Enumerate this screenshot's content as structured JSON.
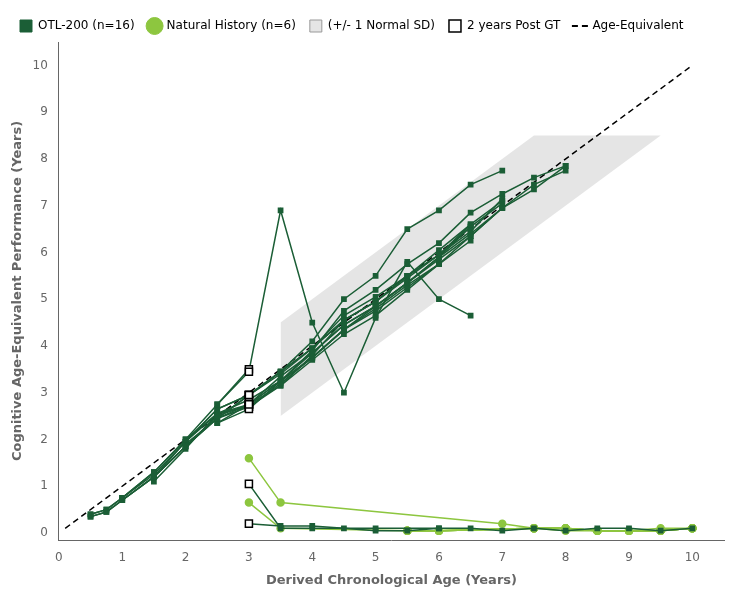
{
  "chart_data": {
    "type": "line",
    "xlabel": "Derived Chronological Age (Years)",
    "ylabel": "Cognitive Age-Equivalent Performance (Years)",
    "xlim": [
      0,
      10.5
    ],
    "ylim": [
      -0.15,
      10.5
    ],
    "xticks": [
      0,
      1,
      2,
      3,
      4,
      5,
      6,
      7,
      8,
      9,
      10
    ],
    "yticks": [
      0,
      1,
      2,
      3,
      4,
      5,
      6,
      7,
      8,
      9,
      10
    ],
    "grid": false,
    "legend": "upper left",
    "series": [
      {
        "name": "OTL-200 (n=16)",
        "type": "line",
        "color": "#1b5e36",
        "marker": "square",
        "line_style": "solid",
        "lines": [
          {
            "x": [
              0.5,
              0.75,
              1.0,
              1.5,
              2.0,
              2.5,
              3.0
            ],
            "values": [
              0.4,
              0.5,
              0.75,
              1.3,
              2.0,
              2.75,
              3.5
            ]
          },
          {
            "x": [
              0.5,
              0.75,
              1.0,
              1.5,
              2.0,
              2.5,
              3.0,
              3.5,
              4.0,
              4.5,
              5.0,
              5.5,
              6.0,
              6.5,
              7.0
            ],
            "values": [
              0.35,
              0.45,
              0.7,
              1.2,
              1.85,
              2.45,
              2.95,
              3.45,
              4.1,
              5.0,
              5.5,
              6.5,
              6.9,
              7.45,
              7.75
            ]
          },
          {
            "x": [
              0.5,
              0.75,
              1.0,
              1.5,
              2.0,
              2.5,
              3.0,
              3.5,
              4.0,
              4.5,
              5.0,
              5.5,
              6.0,
              6.5,
              7.0,
              7.5,
              8.0
            ],
            "values": [
              0.4,
              0.5,
              0.75,
              1.3,
              2.0,
              2.55,
              2.85,
              3.25,
              3.9,
              4.75,
              5.2,
              5.75,
              6.2,
              6.85,
              7.25,
              7.6,
              7.85
            ]
          },
          {
            "x": [
              0.5,
              0.75,
              1.0,
              1.5,
              2.0,
              2.5,
              3.0,
              3.5,
              4.0,
              4.5,
              5.0,
              5.5,
              6.0,
              6.5
            ],
            "values": [
              0.35,
              0.45,
              0.7,
              1.2,
              1.85,
              2.45,
              2.75,
              3.15,
              3.8,
              4.55,
              4.95,
              5.5,
              5.95,
              6.6
            ]
          },
          {
            "x": [
              1.0,
              1.5,
              2.0,
              2.5,
              3.0,
              3.5,
              4.0,
              4.5,
              5.0,
              5.5,
              6.0,
              6.5,
              7.0
            ],
            "values": [
              0.75,
              1.25,
              1.95,
              2.65,
              2.95,
              3.4,
              3.95,
              4.65,
              5.05,
              5.5,
              5.95,
              6.45,
              7.15
            ]
          },
          {
            "x": [
              1.0,
              1.5,
              2.0,
              2.5,
              3.0,
              3.5,
              4.0,
              4.5,
              5.0,
              5.5,
              6.0,
              6.5,
              7.0,
              7.5,
              8.0
            ],
            "values": [
              0.7,
              1.2,
              1.85,
              2.5,
              2.75,
              3.25,
              3.85,
              4.45,
              4.85,
              5.35,
              5.9,
              6.4,
              6.95,
              7.45,
              7.75
            ]
          },
          {
            "x": [
              1.5,
              2.0,
              2.5,
              3.0,
              3.5,
              4.0,
              4.5,
              5.0,
              5.5,
              6.0,
              6.5
            ],
            "values": [
              1.1,
              1.8,
              2.55,
              2.7,
              3.2,
              3.75,
              4.35,
              4.8,
              5.3,
              5.75,
              6.25
            ]
          },
          {
            "x": [
              1.5,
              2.0,
              2.5,
              3.0,
              3.5,
              4.0,
              4.5,
              5.0,
              5.5,
              6.0,
              6.5,
              7.0
            ],
            "values": [
              1.2,
              1.95,
              2.65,
              2.95,
              3.45,
              3.95,
              4.55,
              4.95,
              5.5,
              6.05,
              6.6,
              7.1
            ]
          },
          {
            "x": [
              2.0,
              2.5,
              3.0,
              3.5,
              4.0,
              4.5,
              5.0,
              5.5,
              6.0
            ],
            "values": [
              1.9,
              2.45,
              2.7,
              3.15,
              3.7,
              4.25,
              4.65,
              5.2,
              5.75
            ]
          },
          {
            "x": [
              2.0,
              2.5,
              3.0,
              3.5,
              4.0,
              4.5,
              5.0,
              5.5,
              6.0,
              6.5,
              7.0
            ],
            "values": [
              1.95,
              2.55,
              2.75,
              3.25,
              3.75,
              4.35,
              4.85,
              5.35,
              5.85,
              6.35,
              6.95
            ]
          },
          {
            "x": [
              2.5,
              3.0,
              3.5,
              4.0,
              4.5,
              5.0,
              5.5,
              6.0,
              6.5,
              7.0,
              7.5,
              8.0
            ],
            "values": [
              2.35,
              2.65,
              3.25,
              3.75,
              4.35,
              4.75,
              5.25,
              5.75,
              6.35,
              6.95,
              7.35,
              7.85
            ]
          },
          {
            "x": [
              2.5,
              3.0,
              3.5,
              4.0,
              4.5,
              5.0,
              5.5,
              6.0,
              6.5
            ],
            "values": [
              2.35,
              2.75,
              3.35,
              3.85,
              4.45,
              4.85,
              5.35,
              5.9,
              6.55
            ]
          },
          {
            "x": [
              2.5,
              3.0,
              3.5,
              4.0,
              4.5,
              5.0,
              5.5,
              6.0,
              6.5,
              7.0
            ],
            "values": [
              2.45,
              2.95,
              3.45,
              3.95,
              4.55,
              4.95,
              5.45,
              5.95,
              6.55,
              7.05
            ]
          },
          {
            "x": [
              2.5,
              3.0,
              3.5,
              4.0,
              4.5,
              5.0,
              5.5,
              6.0,
              6.5
            ],
            "values": [
              2.75,
              3.45,
              6.9,
              4.5,
              3.0,
              4.6,
              5.8,
              5.0,
              4.65
            ]
          },
          {
            "x": [
              3.0,
              3.5,
              4.0,
              5.0,
              6.0
            ],
            "values": [
              1.05,
              0.1,
              0.1,
              0.1,
              0.1
            ]
          },
          {
            "x": [
              3.0,
              3.5,
              4.0,
              4.5,
              5.0,
              5.5,
              6.0,
              6.5,
              7.0,
              7.5,
              8.0,
              8.5,
              9.0,
              9.5,
              10.0
            ],
            "values": [
              0.2,
              0.15,
              0.15,
              0.1,
              0.05,
              0.05,
              0.1,
              0.1,
              0.05,
              0.1,
              0.05,
              0.1,
              0.1,
              0.05,
              0.1
            ]
          }
        ]
      },
      {
        "name": "Natural History (n=6)",
        "type": "line",
        "color": "#8dc63f",
        "marker": "circle",
        "line_style": "solid",
        "lines": [
          {
            "x": [
              3.0,
              3.5,
              7.0,
              7.5,
              8.0,
              8.5,
              9.0,
              9.5,
              10.0
            ],
            "values": [
              1.6,
              0.65,
              0.2,
              0.1,
              0.05,
              0.05,
              0.05,
              0.1,
              0.1
            ]
          },
          {
            "x": [
              3.0,
              3.5,
              5.5,
              6.0,
              7.5,
              8.0,
              8.5,
              9.0,
              9.5,
              10.0
            ],
            "values": [
              0.65,
              0.1,
              0.05,
              0.05,
              0.1,
              0.1,
              0.05,
              0.05,
              0.05,
              0.1
            ]
          },
          {
            "x": [
              5.5,
              6.0,
              7.5,
              8.0,
              8.5,
              9.0,
              9.5,
              10.0
            ],
            "values": [
              0.05,
              0.05,
              0.1,
              0.1,
              0.05,
              0.05,
              0.05,
              0.1
            ]
          },
          {
            "x": [
              5.5,
              6.0,
              7.5,
              8.0,
              8.5,
              9.0,
              9.5,
              10.0
            ],
            "values": [
              0.05,
              0.05,
              0.1,
              0.1,
              0.05,
              0.05,
              0.05,
              0.1
            ]
          },
          {
            "x": [
              5.5,
              6.0,
              7.5,
              8.0,
              8.5,
              9.0,
              9.5,
              10.0
            ],
            "values": [
              0.05,
              0.05,
              0.1,
              0.1,
              0.05,
              0.05,
              0.05,
              0.1
            ]
          },
          {
            "x": [
              5.5,
              6.0,
              7.5,
              8.0,
              8.5,
              9.0,
              9.5,
              10.0
            ],
            "values": [
              0.05,
              0.05,
              0.1,
              0.1,
              0.05,
              0.05,
              0.05,
              0.1
            ]
          }
        ]
      },
      {
        "name": "(+/- 1 Normal SD)",
        "type": "area",
        "color": "#cccccc",
        "x": [
          3.5,
          7.5,
          9.5,
          10.5
        ],
        "lower": [
          2.5,
          6.5,
          8.5,
          8.5
        ],
        "upper": [
          4.5,
          8.5,
          8.5,
          8.5
        ]
      },
      {
        "name": "2 years Post GT",
        "type": "scatter",
        "color": "#000000",
        "marker": "square",
        "x": [
          3.0,
          3.0,
          3.0,
          3.0,
          3.0,
          3.0,
          3.0,
          3.0,
          3.0,
          3.0,
          3.0,
          3.0,
          3.0,
          3.0,
          3.0,
          3.0
        ],
        "values": [
          3.5,
          2.95,
          2.85,
          2.75,
          2.95,
          2.75,
          2.7,
          2.95,
          2.7,
          2.75,
          2.65,
          2.75,
          2.95,
          3.45,
          1.05,
          0.2
        ]
      },
      {
        "name": "Age-Equivalent",
        "type": "line",
        "color": "#000000",
        "line_style": "dashed",
        "x": [
          0.1,
          10.0
        ],
        "values": [
          0.1,
          10.0
        ]
      }
    ]
  }
}
